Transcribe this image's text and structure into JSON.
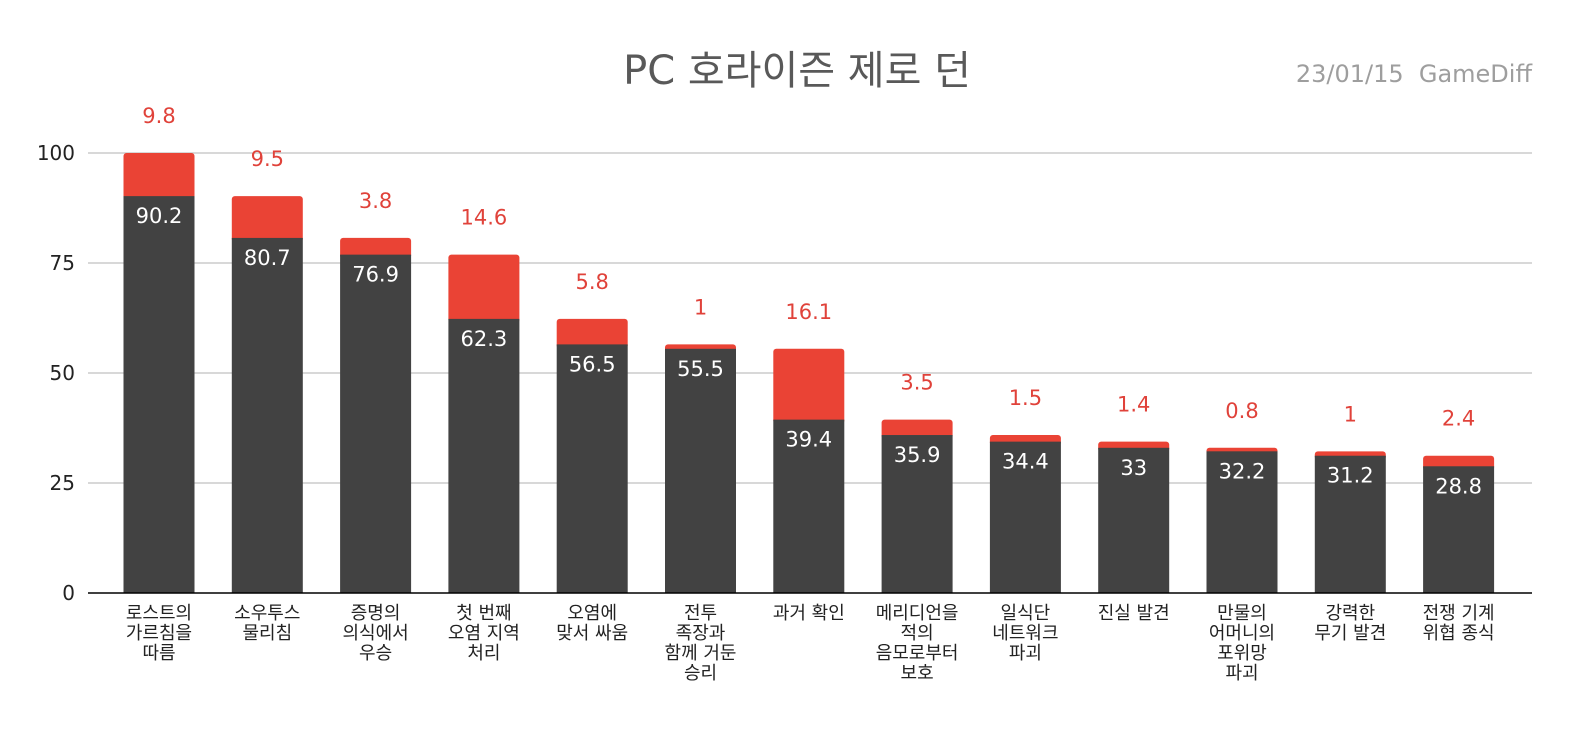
{
  "chart_data": {
    "type": "bar",
    "stacked": true,
    "title": "PC 호라이즌 제로 던",
    "subtitle": "23/01/15  GameDiff",
    "xlabel": "",
    "ylabel": "",
    "ylim": [
      0,
      100
    ],
    "yticks": [
      "0",
      "25",
      "50",
      "75",
      "100"
    ],
    "grid": true,
    "colors": {
      "base": "#424242",
      "top": "#ea4335",
      "grid": "#cccccc",
      "axis": "#000000"
    },
    "categories": [
      [
        "로스트의",
        "가르침을",
        "따름"
      ],
      [
        "소우투스",
        "물리침"
      ],
      [
        "증명의",
        "의식에서",
        "우승"
      ],
      [
        "첫 번째",
        "오염 지역",
        "처리"
      ],
      [
        "오염에",
        "맞서 싸움"
      ],
      [
        "전투",
        "족장과",
        "함께 거둔",
        "승리"
      ],
      [
        "과거 확인"
      ],
      [
        "메리디언을",
        "적의",
        "음모로부터",
        "보호"
      ],
      [
        "일식단",
        "네트워크",
        "파괴"
      ],
      [
        "진실 발견"
      ],
      [
        "만물의",
        "어머니의",
        "포위망",
        "파괴"
      ],
      [
        "강력한",
        "무기 발견"
      ],
      [
        "전쟁 기계",
        "위협 종식"
      ]
    ],
    "series": [
      {
        "values": [
          90.2,
          80.7,
          76.9,
          62.3,
          56.5,
          55.5,
          39.4,
          35.9,
          34.4,
          33,
          32.2,
          31.2,
          28.8
        ],
        "labels": [
          "90.2",
          "80.7",
          "76.9",
          "62.3",
          "56.5",
          "55.5",
          "39.4",
          "35.9",
          "34.4",
          "33",
          "32.2",
          "31.2",
          "28.8"
        ]
      },
      {
        "values": [
          9.8,
          9.5,
          3.8,
          14.6,
          5.8,
          1,
          16.1,
          3.5,
          1.5,
          1.4,
          0.8,
          1,
          2.4
        ],
        "labels": [
          "9.8",
          "9.5",
          "3.8",
          "14.6",
          "5.8",
          "1",
          "16.1",
          "3.5",
          "1.5",
          "1.4",
          "0.8",
          "1",
          "2.4"
        ]
      }
    ]
  }
}
